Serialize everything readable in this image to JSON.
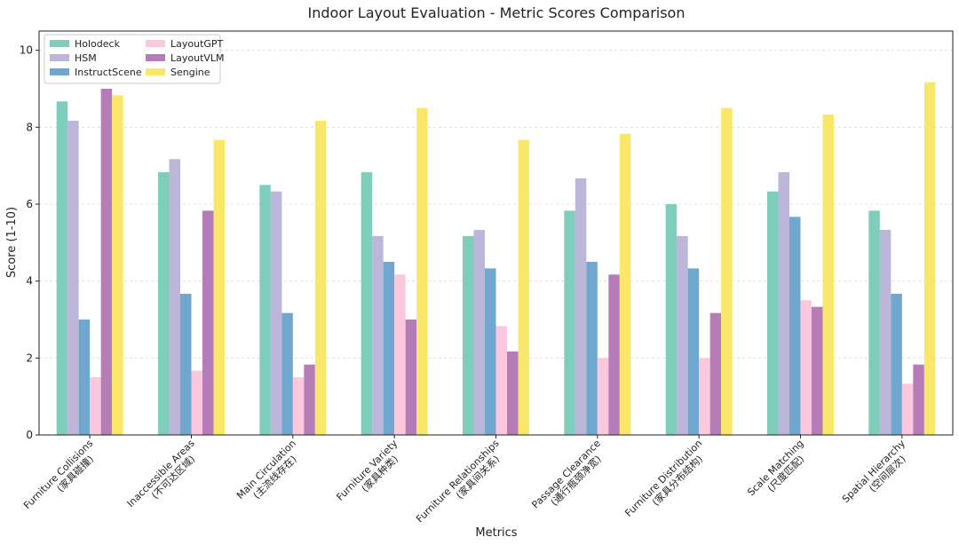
{
  "chart_data": {
    "type": "bar",
    "title": "Indoor Layout Evaluation - Metric Scores Comparison",
    "xlabel": "Metrics",
    "ylabel": "Score (1-10)",
    "ylim": [
      0,
      10.5
    ],
    "yticks": [
      0,
      2,
      4,
      6,
      8,
      10
    ],
    "grid": "horizontal dashed",
    "legend_position": "top-left",
    "categories": [
      [
        "Furniture Collisions",
        "(家具碰撞)"
      ],
      [
        "Inaccessible Areas",
        "(不可达区域)"
      ],
      [
        "Main Circulation",
        "(主流线存在)"
      ],
      [
        "Furniture Variety",
        "(家具种类)"
      ],
      [
        "Furniture Relationships",
        "(家具间关系)"
      ],
      [
        "Passage Clearance",
        "(通行瓶颈净宽)"
      ],
      [
        "Furniture Distribution",
        "(家具分布结构)"
      ],
      [
        "Scale Matching",
        "(尺度匹配)"
      ],
      [
        "Spatial Hierarchy",
        "(空间层次)"
      ]
    ],
    "series": [
      {
        "name": "Holodeck",
        "color": "#7fcdbb",
        "values": [
          8.67,
          6.83,
          6.5,
          6.83,
          5.17,
          5.83,
          6.0,
          6.33,
          5.83
        ]
      },
      {
        "name": "HSM",
        "color": "#bcb6da",
        "values": [
          8.17,
          7.17,
          6.33,
          5.17,
          5.33,
          6.67,
          5.17,
          6.83,
          5.33
        ]
      },
      {
        "name": "InstructScene",
        "color": "#6fa7cf",
        "values": [
          3.0,
          3.67,
          3.17,
          4.5,
          4.33,
          4.5,
          4.33,
          5.67,
          3.67
        ]
      },
      {
        "name": "LayoutGPT",
        "color": "#fbc8de",
        "values": [
          1.5,
          1.67,
          1.5,
          4.17,
          2.83,
          2.0,
          2.0,
          3.5,
          1.33
        ]
      },
      {
        "name": "LayoutVLM",
        "color": "#b57cb8",
        "values": [
          9.0,
          5.83,
          1.83,
          3.0,
          2.17,
          4.17,
          3.17,
          3.33,
          1.83
        ]
      },
      {
        "name": "Sengine",
        "color": "#f9e76a",
        "values": [
          8.83,
          7.67,
          8.17,
          8.5,
          7.67,
          7.83,
          8.5,
          8.33,
          9.17
        ]
      }
    ]
  }
}
